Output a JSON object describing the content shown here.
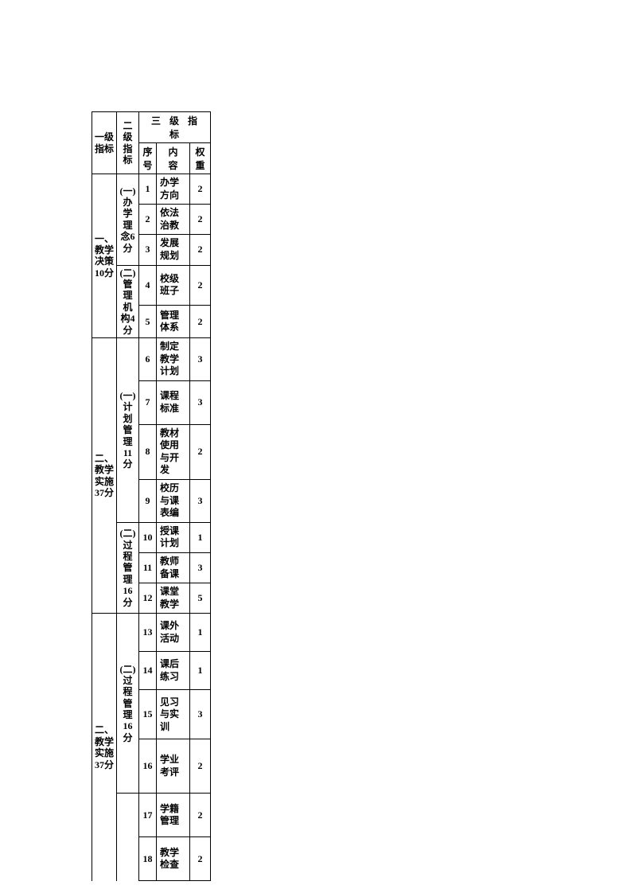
{
  "table": {
    "border_color": "#000000",
    "background_color": "#ffffff",
    "font_family": "SimSun",
    "header": {
      "level1": "一级指标",
      "level2": "二级指标",
      "level3_group": "三 级 指 标",
      "seq": "序号",
      "content": "内　容",
      "weight": "权重"
    },
    "sections": [
      {
        "level1": "一、教学决策10分",
        "level2_groups": [
          {
            "level2": "(一)办学理念6分",
            "rows": [
              {
                "seq": "1",
                "content": "办学方向",
                "weight": "2",
                "height": "row-h1"
              },
              {
                "seq": "2",
                "content": "依法治教",
                "weight": "2",
                "height": "row-h2"
              },
              {
                "seq": "3",
                "content": "发展规划",
                "weight": "2",
                "height": "row-h2"
              }
            ]
          },
          {
            "level2": "(二)管理机构4分",
            "rows": [
              {
                "seq": "4",
                "content": "校级班子",
                "weight": "2",
                "height": "row-h3"
              },
              {
                "seq": "5",
                "content": "管理体系",
                "weight": "2",
                "height": "row-h2"
              }
            ]
          }
        ]
      },
      {
        "level1": "二、教学实施37分",
        "level2_groups": [
          {
            "level2": "(一)计划管理11分",
            "rows": [
              {
                "seq": "6",
                "content": "制定教学计划",
                "weight": "3",
                "height": "row-h3"
              },
              {
                "seq": "7",
                "content": "课程标准",
                "weight": "3",
                "height": "row-h4"
              },
              {
                "seq": "8",
                "content": "教材使用与开发",
                "weight": "2",
                "height": "row-h4"
              },
              {
                "seq": "9",
                "content": "校历与课表编",
                "weight": "3",
                "height": "row-h3"
              }
            ]
          },
          {
            "level2": "(二)过程管理16分",
            "rows": [
              {
                "seq": "10",
                "content": "授课计划",
                "weight": "1",
                "height": "row-h2"
              },
              {
                "seq": "11",
                "content": "教师备课",
                "weight": "3",
                "height": "row-h1"
              },
              {
                "seq": "12",
                "content": "课堂教学",
                "weight": "5",
                "height": "row-h1"
              }
            ]
          }
        ]
      },
      {
        "level1": "二、教学实施37分",
        "level2_groups": [
          {
            "level2": "(二)过程管理16分",
            "rows": [
              {
                "seq": "13",
                "content": "课外活动",
                "weight": "1",
                "height": "row-h3"
              },
              {
                "seq": "14",
                "content": "课后练习",
                "weight": "1",
                "height": "row-h3"
              },
              {
                "seq": "15",
                "content": "见习与实训",
                "weight": "3",
                "height": "row-h5"
              },
              {
                "seq": "16",
                "content": "学业考评",
                "weight": "2",
                "height": "row-h6"
              }
            ]
          },
          {
            "level2": "",
            "rows": [
              {
                "seq": "17",
                "content": "学籍管理",
                "weight": "2",
                "height": "row-h4"
              },
              {
                "seq": "18",
                "content": "教学检查",
                "weight": "2",
                "height": "row-h4"
              }
            ]
          }
        ]
      }
    ]
  }
}
